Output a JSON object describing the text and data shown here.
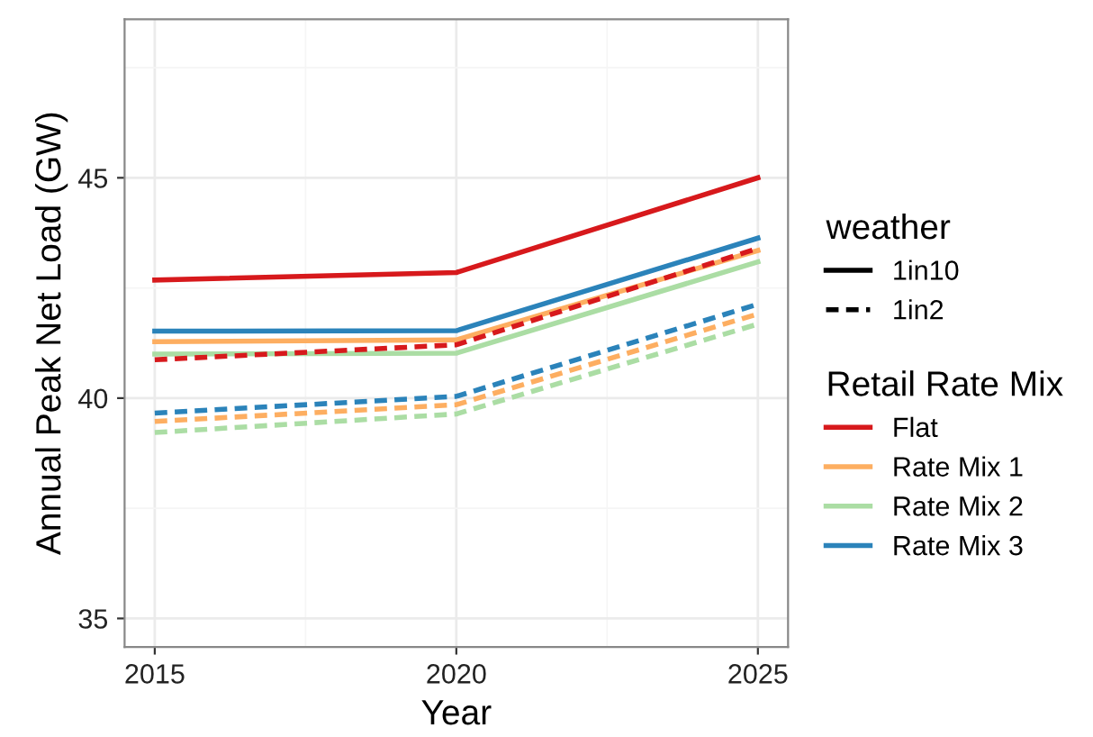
{
  "chart_data": {
    "type": "line",
    "xlabel": "Year",
    "ylabel": "Annual Peak Net Load (GW)",
    "x": [
      2015,
      2020,
      2025
    ],
    "xlim": [
      2014.5,
      2025.5
    ],
    "xticks": [
      2015,
      2020,
      2025
    ],
    "ylim": [
      34.35,
      48.6
    ],
    "yticks": [
      35,
      40,
      45
    ],
    "grid": true,
    "legend": "right",
    "legend_title": [
      "weather",
      "Retail Rate Mix"
    ],
    "annotations": [
      "1in10",
      "1in2"
    ],
    "series": [
      {
        "name": "Flat",
        "color": "#d7191c",
        "line_style": "solid",
        "values": [
          42.68,
          42.85,
          45.0
        ]
      },
      {
        "name": "Rate Mix 1",
        "color": "#fdae61",
        "line_style": "solid",
        "values": [
          41.28,
          41.32,
          43.35
        ]
      },
      {
        "name": "Rate Mix 2",
        "color": "#abdda4",
        "line_style": "solid",
        "values": [
          41.0,
          41.02,
          43.09
        ]
      },
      {
        "name": "Rate Mix 3",
        "color": "#2b83ba",
        "line_style": "solid",
        "values": [
          41.52,
          41.53,
          43.63
        ]
      },
      {
        "color": "#d7191c",
        "line_style": "dashed",
        "values": [
          40.87,
          41.21,
          43.4
        ]
      },
      {
        "color": "#fdae61",
        "line_style": "dashed",
        "values": [
          39.47,
          39.85,
          41.91
        ]
      },
      {
        "color": "#abdda4",
        "line_style": "dashed",
        "values": [
          39.22,
          39.64,
          41.68
        ]
      },
      {
        "color": "#2b83ba",
        "line_style": "dashed",
        "values": [
          39.66,
          40.04,
          42.13
        ]
      }
    ]
  }
}
